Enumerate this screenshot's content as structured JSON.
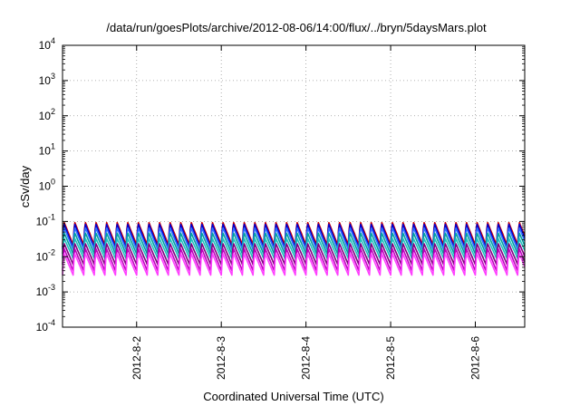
{
  "chart_data": {
    "type": "line",
    "title": "/data/run/goesPlots/archive/2012-08-06/14:00/flux/../bryn/5daysMars.plot",
    "xlabel": "Coordinated Universal Time (UTC)",
    "ylabel": "cSv/day",
    "yscale": "log",
    "ylim": [
      0.0001,
      10000
    ],
    "y_ticks": [
      {
        "exp": "4",
        "value": 10000
      },
      {
        "exp": "3",
        "value": 1000
      },
      {
        "exp": "2",
        "value": 100
      },
      {
        "exp": "1",
        "value": 10
      },
      {
        "exp": "0",
        "value": 1
      },
      {
        "exp": "-1",
        "value": 0.1
      },
      {
        "exp": "-2",
        "value": 0.01
      },
      {
        "exp": "-3",
        "value": 0.001
      },
      {
        "exp": "-4",
        "value": 0.0001
      }
    ],
    "y_tick_base": "10",
    "xlim": [
      "2012-08-01 03:00",
      "2012-08-06 14:00"
    ],
    "x_ticks": [
      "2012-8-2",
      "2012-8-3",
      "2012-8-4",
      "2012-8-5",
      "2012-8-6"
    ],
    "grid": {
      "x": true,
      "y": true,
      "style": "dotted"
    },
    "pattern": {
      "period_hours": 3,
      "shape": "sawtooth: sharp rise then decay"
    },
    "series": [
      {
        "color": "#d00000",
        "peak": 0.1,
        "trough": 0.022
      },
      {
        "color": "#0000d0",
        "peak": 0.09,
        "trough": 0.018
      },
      {
        "color": "#3070ff",
        "peak": 0.07,
        "trough": 0.016
      },
      {
        "color": "#00a0a0",
        "peak": 0.05,
        "trough": 0.012
      },
      {
        "color": "#20c0c0",
        "peak": 0.035,
        "trough": 0.009
      },
      {
        "color": "#800080",
        "peak": 0.025,
        "trough": 0.006
      },
      {
        "color": "#c000c0",
        "peak": 0.018,
        "trough": 0.004
      },
      {
        "color": "#ff40ff",
        "peak": 0.013,
        "trough": 0.003
      }
    ]
  }
}
